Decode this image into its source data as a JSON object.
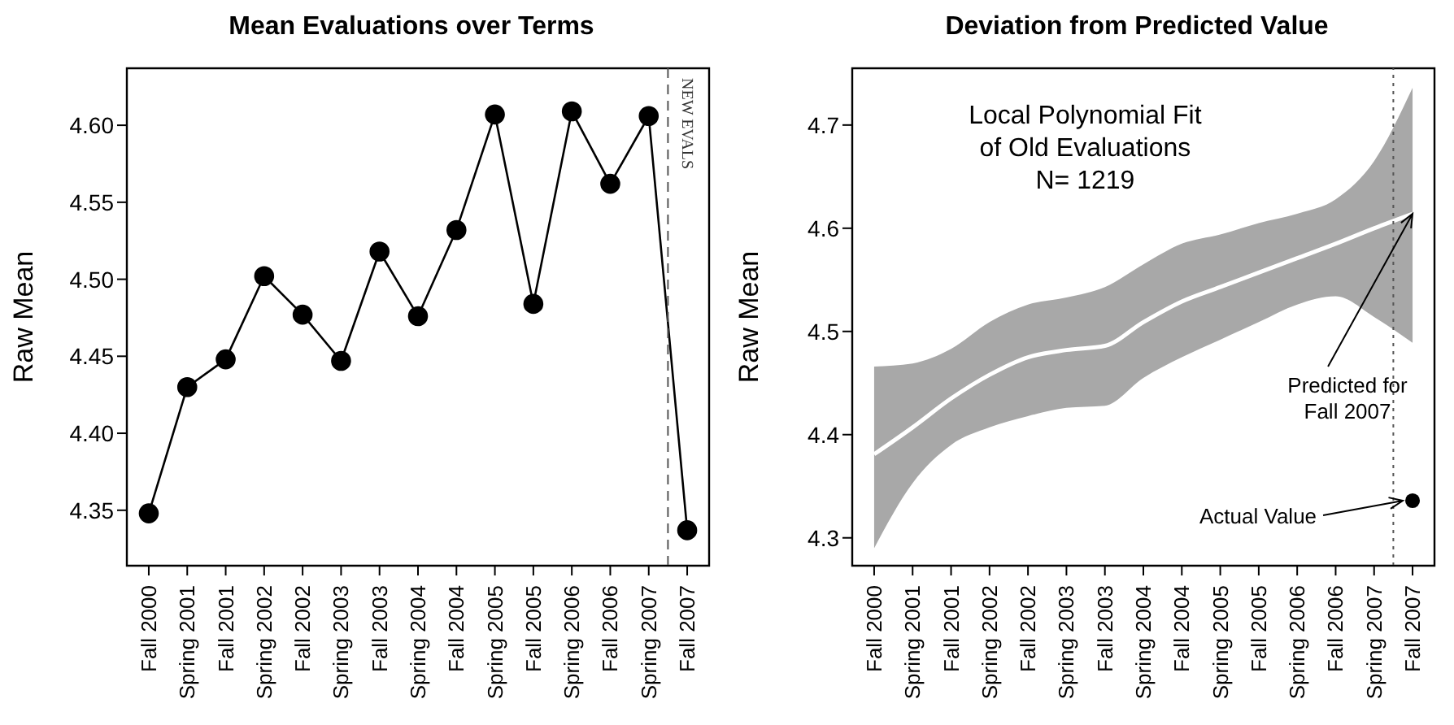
{
  "chart_data": [
    {
      "type": "line",
      "title": "Mean Evaluations over Terms",
      "ylabel": "Raw Mean",
      "marker": "circle",
      "grid": false,
      "legend": false,
      "categories": [
        "Fall 2000",
        "Spring 2001",
        "Fall 2001",
        "Spring 2002",
        "Fall 2002",
        "Spring 2003",
        "Fall 2003",
        "Spring 2004",
        "Fall 2004",
        "Spring 2005",
        "Fall 2005",
        "Spring 2006",
        "Fall 2006",
        "Spring 2007",
        "Fall 2007"
      ],
      "ylim": [
        4.314,
        4.637
      ],
      "yticks": [
        4.35,
        {
          "value": 4.4,
          "label": "4.40"
        },
        4.45,
        {
          "value": 4.5,
          "label": "4.50"
        },
        4.55,
        {
          "value": 4.6,
          "label": "4.60"
        }
      ],
      "series": [
        {
          "color": "#000000",
          "values": [
            4.348,
            4.43,
            4.448,
            4.502,
            4.477,
            4.447,
            4.518,
            4.476,
            4.532,
            4.607,
            4.484,
            4.609,
            4.562,
            4.606,
            4.337
          ]
        }
      ],
      "annotations": [
        "NEW EVALS"
      ]
    },
    {
      "type": "line",
      "title": "Deviation from Predicted Value",
      "ylabel": "Raw Mean",
      "grid": false,
      "legend": false,
      "categories": [
        "Fall 2000",
        "Spring 2001",
        "Fall 2001",
        "Spring 2002",
        "Fall 2002",
        "Spring 2003",
        "Fall 2003",
        "Spring 2004",
        "Fall 2004",
        "Spring 2005",
        "Fall 2005",
        "Spring 2006",
        "Fall 2006",
        "Spring 2007",
        "Fall 2007"
      ],
      "ylim": [
        4.273,
        4.755
      ],
      "yticks": [
        4.3,
        4.4,
        4.5,
        4.6,
        4.7
      ],
      "series": [
        {
          "color": "#ffffff",
          "marker": "none",
          "values": [
            4.381,
            4.407,
            4.435,
            4.458,
            4.475,
            4.482,
            4.486,
            4.509,
            4.529,
            4.543,
            4.557,
            4.571,
            4.585,
            4.6,
            4.614
          ],
          "lower": [
            4.29,
            4.353,
            4.39,
            4.407,
            4.418,
            4.426,
            4.428,
            4.455,
            4.475,
            4.492,
            4.509,
            4.526,
            4.534,
            4.514,
            4.489
          ],
          "upper": [
            4.466,
            4.469,
            4.483,
            4.509,
            4.526,
            4.533,
            4.543,
            4.565,
            4.585,
            4.594,
            4.605,
            4.614,
            4.628,
            4.665,
            4.736
          ]
        },
        {
          "type": "scatter",
          "color": "#000000",
          "marker": "circle",
          "x": [
            "Fall 2007"
          ],
          "values": [
            4.336
          ]
        }
      ],
      "annotations": [
        "Local Polynomial Fit\nof Old Evaluations\nN= 1219",
        {
          "text": "Predicted for\nFall 2007",
          "x": "Fall 2007",
          "y": 4.614
        },
        {
          "text": "Actual Value",
          "x": "Fall 2007",
          "y": 4.336
        }
      ]
    }
  ]
}
